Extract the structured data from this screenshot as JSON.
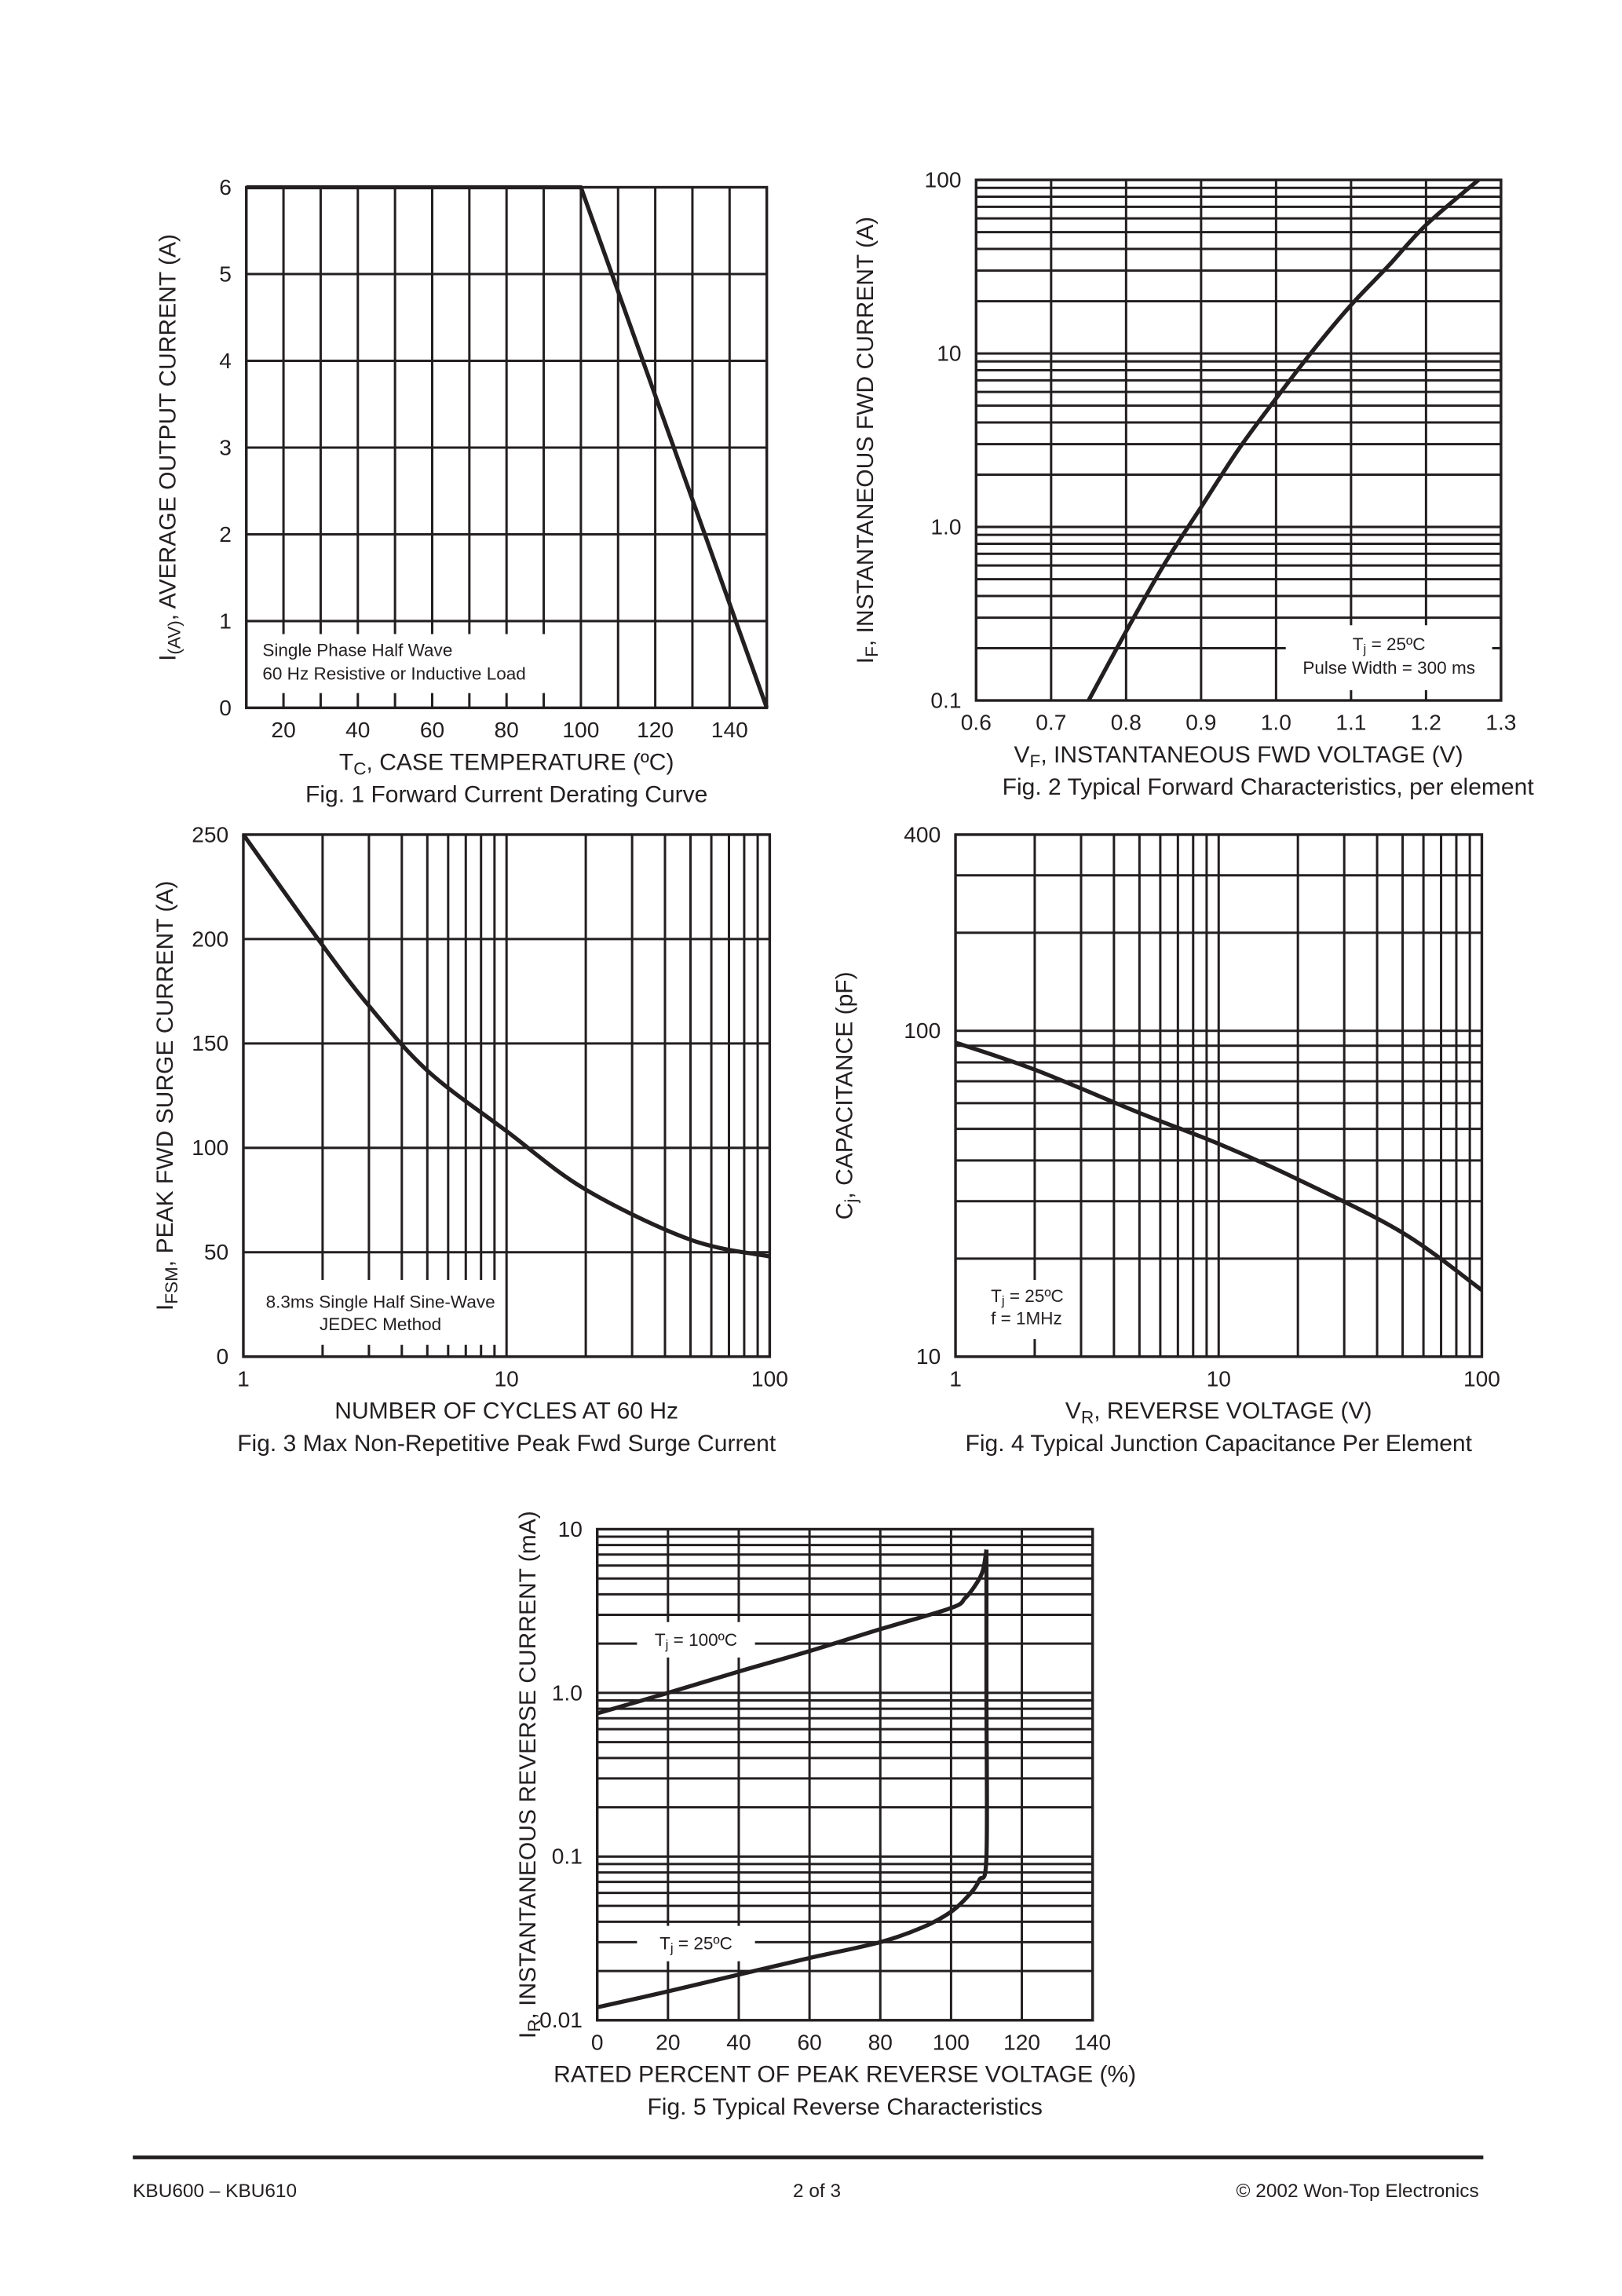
{
  "footer": {
    "left": "KBU600 – KBU610",
    "center": "2  of  3",
    "right": "© 2002 Won-Top Electronics"
  },
  "chart_data": [
    {
      "type": "line",
      "title": "Fig. 1  Forward Current Derating Curve",
      "xlabel_parts": [
        {
          "t": "T"
        },
        {
          "t": "C",
          "sub": true
        },
        {
          "t": ", CASE TEMPERATURE (ºC)"
        }
      ],
      "ylabel_parts": [
        {
          "t": "I"
        },
        {
          "t": "(AV)",
          "sub": true
        },
        {
          "t": ", AVERAGE OUTPUT CURRENT (A)"
        }
      ],
      "xscale": "linear",
      "yscale": "linear",
      "xlim": [
        10,
        150
      ],
      "ylim": [
        0,
        6
      ],
      "xgrid_step": 10,
      "ygrid_step": 1,
      "grid": true,
      "xticks": [
        {
          "v": 20,
          "l": "20"
        },
        {
          "v": 40,
          "l": "40"
        },
        {
          "v": 60,
          "l": "60"
        },
        {
          "v": 80,
          "l": "80"
        },
        {
          "v": 100,
          "l": "100"
        },
        {
          "v": 120,
          "l": "120"
        },
        {
          "v": 140,
          "l": "140"
        }
      ],
      "yticks": [
        {
          "v": 0,
          "l": "0"
        },
        {
          "v": 1,
          "l": "1"
        },
        {
          "v": 2,
          "l": "2"
        },
        {
          "v": 3,
          "l": "3"
        },
        {
          "v": 4,
          "l": "4"
        },
        {
          "v": 5,
          "l": "5"
        },
        {
          "v": 6,
          "l": "6"
        }
      ],
      "series": [
        {
          "x": [
            10,
            100,
            150
          ],
          "y": [
            6,
            6,
            0
          ]
        }
      ],
      "annotations": [
        {
          "lines": [
            [
              {
                "t": "Single Phase Half Wave"
              }
            ],
            [
              {
                "t": "60 Hz Resistive or Inductive Load"
              }
            ]
          ]
        }
      ]
    },
    {
      "type": "line",
      "title": "Fig. 2  Typical Forward Characteristics, per element",
      "xlabel_parts": [
        {
          "t": "V"
        },
        {
          "t": "F",
          "sub": true
        },
        {
          "t": ", INSTANTANEOUS FWD VOLTAGE (V)"
        }
      ],
      "ylabel_parts": [
        {
          "t": "I"
        },
        {
          "t": "F",
          "sub": true
        },
        {
          "t": ", INSTANTANEOUS FWD CURRENT (A)"
        }
      ],
      "xscale": "linear",
      "yscale": "log",
      "xlim": [
        0.6,
        1.3
      ],
      "ylim": [
        0.1,
        100
      ],
      "xgrid_step": 0.1,
      "grid": true,
      "xticks": [
        {
          "v": 0.6,
          "l": "0.6"
        },
        {
          "v": 0.7,
          "l": "0.7"
        },
        {
          "v": 0.8,
          "l": "0.8"
        },
        {
          "v": 0.9,
          "l": "0.9"
        },
        {
          "v": 1.0,
          "l": "1.0"
        },
        {
          "v": 1.1,
          "l": "1.1"
        },
        {
          "v": 1.2,
          "l": "1.2"
        },
        {
          "v": 1.3,
          "l": "1.3"
        }
      ],
      "yticks": [
        {
          "v": 0.1,
          "l": "0.1"
        },
        {
          "v": 1,
          "l": "1.0"
        },
        {
          "v": 10,
          "l": "10"
        },
        {
          "v": 100,
          "l": "100"
        }
      ],
      "series": [
        {
          "x": [
            0.75,
            0.8,
            0.85,
            0.9,
            0.95,
            1.0,
            1.05,
            1.1,
            1.15,
            1.2,
            1.27
          ],
          "y": [
            0.1,
            0.25,
            0.6,
            1.3,
            2.8,
            5.5,
            10.5,
            19,
            32,
            55,
            100
          ]
        }
      ],
      "annotations": [
        {
          "lines": [
            [
              {
                "t": "T"
              },
              {
                "t": "j",
                "sub": true
              },
              {
                "t": " = 25ºC"
              }
            ],
            [
              {
                "t": "Pulse Width = 300 ms"
              }
            ]
          ]
        }
      ]
    },
    {
      "type": "line",
      "title": "Fig. 3  Max Non-Repetitive Peak Fwd Surge Current",
      "xlabel_parts": [
        {
          "t": "NUMBER OF CYCLES AT 60 Hz"
        }
      ],
      "ylabel_parts": [
        {
          "t": "I"
        },
        {
          "t": "FSM",
          "sub": true
        },
        {
          "t": ",  PEAK FWD SURGE CURRENT (A)"
        }
      ],
      "xscale": "log",
      "yscale": "linear",
      "xlim": [
        1,
        100
      ],
      "ylim": [
        0,
        250
      ],
      "ygrid_step": 50,
      "grid": true,
      "xticks": [
        {
          "v": 1,
          "l": "1"
        },
        {
          "v": 10,
          "l": "10"
        },
        {
          "v": 100,
          "l": "100"
        }
      ],
      "yticks": [
        {
          "v": 0,
          "l": "0"
        },
        {
          "v": 50,
          "l": "50"
        },
        {
          "v": 100,
          "l": "100"
        },
        {
          "v": 150,
          "l": "150"
        },
        {
          "v": 200,
          "l": "200"
        },
        {
          "v": 250,
          "l": "250"
        }
      ],
      "series": [
        {
          "x": [
            1,
            2,
            3,
            5,
            10,
            20,
            50,
            100
          ],
          "y": [
            250,
            197,
            168,
            137,
            108,
            80,
            56,
            48
          ]
        }
      ],
      "annotations": [
        {
          "lines": [
            [
              {
                "t": "8.3ms Single Half Sine-Wave"
              }
            ],
            [
              {
                "t": "JEDEC Method"
              }
            ]
          ]
        }
      ]
    },
    {
      "type": "line",
      "title": "Fig. 4  Typical Junction Capacitance Per Element",
      "xlabel_parts": [
        {
          "t": "V"
        },
        {
          "t": "R",
          "sub": true
        },
        {
          "t": ", REVERSE VOLTAGE (V)"
        }
      ],
      "ylabel_parts": [
        {
          "t": "C"
        },
        {
          "t": "j",
          "sub": true
        },
        {
          "t": ", CAPACITANCE (pF)"
        }
      ],
      "xscale": "log",
      "yscale": "log",
      "xlim": [
        1,
        100
      ],
      "ylim": [
        10,
        400
      ],
      "grid": true,
      "xticks": [
        {
          "v": 1,
          "l": "1"
        },
        {
          "v": 10,
          "l": "10"
        },
        {
          "v": 100,
          "l": "100"
        }
      ],
      "yticks": [
        {
          "v": 10,
          "l": "10"
        },
        {
          "v": 100,
          "l": "100"
        },
        {
          "v": 400,
          "l": "400"
        }
      ],
      "series": [
        {
          "x": [
            1,
            2,
            5,
            10,
            20,
            50,
            100
          ],
          "y": [
            92,
            76,
            56,
            45,
            35,
            24,
            16
          ]
        }
      ],
      "annotations": [
        {
          "lines": [
            [
              {
                "t": "T"
              },
              {
                "t": "j",
                "sub": true
              },
              {
                "t": " = 25ºC"
              }
            ],
            [
              {
                "t": "f = 1MHz"
              }
            ]
          ]
        }
      ]
    },
    {
      "type": "line",
      "title": "Fig. 5  Typical Reverse Characteristics",
      "xlabel_parts": [
        {
          "t": "RATED PERCENT OF PEAK REVERSE VOLTAGE (%)"
        }
      ],
      "ylabel_parts": [
        {
          "t": "I"
        },
        {
          "t": "R",
          "sub": true
        },
        {
          "t": ", INSTANTANEOUS REVERSE CURRENT (mA)"
        }
      ],
      "xscale": "linear",
      "yscale": "log",
      "xlim": [
        0,
        140
      ],
      "ylim": [
        0.01,
        10
      ],
      "xgrid_step": 20,
      "grid": true,
      "xticks": [
        {
          "v": 0,
          "l": "0"
        },
        {
          "v": 20,
          "l": "20"
        },
        {
          "v": 40,
          "l": "40"
        },
        {
          "v": 60,
          "l": "60"
        },
        {
          "v": 80,
          "l": "80"
        },
        {
          "v": 100,
          "l": "100"
        },
        {
          "v": 120,
          "l": "120"
        },
        {
          "v": 140,
          "l": "140"
        }
      ],
      "yticks": [
        {
          "v": 0.01,
          "l": "0.01"
        },
        {
          "v": 0.1,
          "l": "0.1"
        },
        {
          "v": 1,
          "l": "1.0"
        },
        {
          "v": 10,
          "l": "10"
        }
      ],
      "series": [
        {
          "name": "Tj = 100ºC",
          "x": [
            0,
            20,
            40,
            60,
            80,
            100,
            104,
            107,
            109,
            110
          ],
          "y": [
            0.75,
            1.0,
            1.35,
            1.8,
            2.45,
            3.3,
            3.8,
            4.6,
            5.6,
            7.5
          ]
        },
        {
          "name": "Tj = 25ºC",
          "x": [
            0,
            20,
            40,
            60,
            80,
            92,
            100,
            105,
            108,
            110,
            110,
            110
          ],
          "y": [
            0.012,
            0.015,
            0.019,
            0.024,
            0.03,
            0.037,
            0.046,
            0.058,
            0.072,
            0.1,
            1,
            7.5
          ]
        }
      ],
      "annotations": [
        {
          "lines": [
            [
              {
                "t": "T"
              },
              {
                "t": "j",
                "sub": true
              },
              {
                "t": " = 100ºC"
              }
            ]
          ]
        },
        {
          "lines": [
            [
              {
                "t": "T"
              },
              {
                "t": "j",
                "sub": true
              },
              {
                "t": " = 25ºC"
              }
            ]
          ]
        }
      ]
    }
  ]
}
